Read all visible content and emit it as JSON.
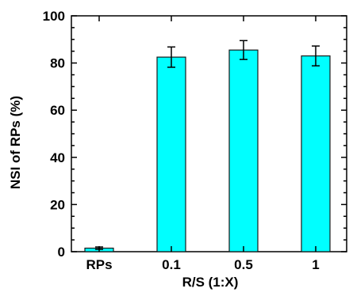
{
  "chart_data": {
    "type": "bar",
    "title": "",
    "xlabel": "R/S (1:X)",
    "ylabel": "NSI of RPs (%)",
    "categories": [
      "RPs",
      "0.1",
      "0.5",
      "1"
    ],
    "values": [
      1.5,
      82.5,
      85.5,
      83.0
    ],
    "errors": [
      0.5,
      4.3,
      4.0,
      4.2
    ],
    "ylim": [
      0,
      100
    ],
    "yticks": [
      0,
      20,
      40,
      60,
      80,
      100
    ],
    "ytick_labels": [
      "0",
      "20",
      "40",
      "60",
      "80",
      "100"
    ],
    "grid": false,
    "legend": "none",
    "colors": {
      "bar_fill": "#00ffff",
      "bar_stroke": "#1a1a1a",
      "axis": "#000000"
    }
  }
}
